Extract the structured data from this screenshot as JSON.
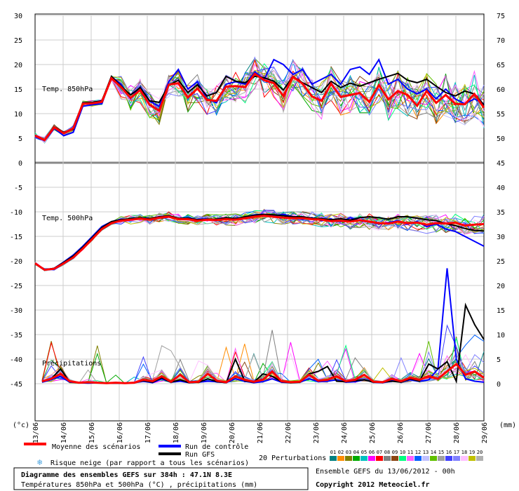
{
  "chart_data": {
    "type": "line",
    "left_axis_label": "(°c)",
    "right_axis_label": "(mm)",
    "left_ticks": [
      "30",
      "25",
      "20",
      "15",
      "10",
      "5",
      "0",
      "-5",
      "-10",
      "-15",
      "-20",
      "-25",
      "-30",
      "-35",
      "-40",
      "-45"
    ],
    "right_ticks": [
      "75",
      "70",
      "65",
      "60",
      "55",
      "50",
      "45",
      "40",
      "35",
      "30",
      "25",
      "20",
      "15",
      "10",
      "5",
      "0"
    ],
    "x_ticks": [
      "13/06",
      "14/06",
      "15/06",
      "16/06",
      "17/06",
      "18/06",
      "19/06",
      "20/06",
      "21/06",
      "22/06",
      "23/06",
      "24/06",
      "25/06",
      "26/06",
      "27/06",
      "28/06",
      "29/06"
    ],
    "panel_labels": {
      "t850": "Temp. 850hPa",
      "t500": "Temp. 500hPa",
      "precip": "Précipitations"
    },
    "series": [
      {
        "name": "Moyenne des scénarios",
        "role": "mean",
        "color": "#ff0000",
        "t850": [
          5.5,
          4.6,
          7.2,
          6.0,
          7.0,
          12.0,
          12.1,
          12.4,
          17.2,
          15.4,
          13.2,
          14.8,
          11.8,
          10.6,
          15.9,
          16.2,
          13.3,
          15.1,
          12.8,
          12.6,
          15.5,
          15.6,
          15.4,
          18.1,
          16.8,
          16.2,
          13.6,
          17.5,
          16.1,
          13.5,
          12.6,
          16.1,
          13.4,
          13.8,
          14.2,
          12.4,
          15.8,
          12.9,
          14.6,
          13.8,
          11.6,
          14.6,
          12.2,
          13.8,
          12.0,
          11.9,
          14.0,
          11.2
        ],
        "t500": [
          -20.5,
          -21.8,
          -21.6,
          -20.5,
          -19.3,
          -17.5,
          -15.5,
          -13.5,
          -12.3,
          -11.8,
          -11.6,
          -11.4,
          -11.6,
          -11.2,
          -11.0,
          -11.5,
          -11.5,
          -11.8,
          -11.6,
          -11.7,
          -11.5,
          -11.6,
          -11.3,
          -11.0,
          -10.8,
          -11.0,
          -11.2,
          -11.3,
          -11.3,
          -11.5,
          -11.6,
          -11.9,
          -11.8,
          -12.0,
          -11.7,
          -12.0,
          -12.3,
          -12.4,
          -12.0,
          -12.3,
          -12.2,
          -12.6,
          -12.3,
          -12.4,
          -12.2,
          -12.8,
          -12.6,
          -12.5
        ],
        "precip": [
          0.5,
          1.0,
          2.0,
          0.5,
          0.2,
          0.3,
          0.2,
          0.1,
          0.2,
          0.1,
          0.2,
          0.8,
          0.5,
          1.5,
          0.4,
          1.8,
          0.3,
          0.4,
          2.0,
          0.6,
          0.3,
          1.5,
          0.8,
          0.4,
          0.8,
          2.5,
          0.5,
          0.3,
          0.4,
          1.8,
          0.6,
          0.8,
          1.5,
          0.5,
          0.8,
          1.8,
          0.4,
          0.3,
          1.0,
          0.5,
          1.2,
          0.8,
          1.5,
          1.0,
          2.5,
          4.0,
          1.8,
          2.5,
          1.2
        ]
      },
      {
        "name": "Run de contrôle",
        "role": "control",
        "color": "#0000ff",
        "t850": [
          5.3,
          4.5,
          7.0,
          5.5,
          6.2,
          11.5,
          11.8,
          12.0,
          17.5,
          16.0,
          13.0,
          15.5,
          12.5,
          11.5,
          16.5,
          19.0,
          15.0,
          16.5,
          13.0,
          12.2,
          16.0,
          16.5,
          16.0,
          18.5,
          17.0,
          21.0,
          20.0,
          18.0,
          19.0,
          16.0,
          17.0,
          18.0,
          16.0,
          19.0,
          19.5,
          18.0,
          21.0,
          16.0,
          17.0,
          15.0,
          14.0,
          15.0,
          13.0,
          15.0,
          13.0,
          12.0,
          13.0,
          12.0
        ],
        "t500": [
          -20.5,
          -21.8,
          -21.5,
          -20.2,
          -18.8,
          -17.0,
          -15.0,
          -13.0,
          -12.0,
          -11.5,
          -11.5,
          -11.2,
          -11.5,
          -11.0,
          -10.8,
          -11.5,
          -11.2,
          -11.6,
          -11.4,
          -11.8,
          -11.2,
          -11.5,
          -11.0,
          -10.6,
          -10.5,
          -10.8,
          -10.5,
          -11.0,
          -11.5,
          -11.2,
          -11.8,
          -11.5,
          -12.0,
          -11.2,
          -11.8,
          -12.0,
          -12.5,
          -12.2,
          -11.8,
          -12.5,
          -12.0,
          -13.0,
          -12.5,
          -13.5,
          -14.0,
          -15.0,
          -16.0,
          -17.0
        ],
        "precip": [
          0.3,
          0.8,
          1.5,
          0.3,
          0.2,
          0.1,
          0.2,
          0.1,
          0.1,
          0.1,
          0.2,
          0.5,
          0.2,
          1.0,
          0.3,
          0.5,
          0.2,
          0.3,
          0.5,
          0.4,
          0.2,
          1.0,
          0.5,
          0.2,
          0.4,
          1.0,
          0.3,
          0.2,
          0.3,
          1.0,
          0.4,
          0.5,
          0.8,
          0.3,
          0.4,
          0.8,
          0.3,
          0.2,
          0.6,
          0.3,
          0.8,
          0.5,
          0.8,
          3.0,
          23.5,
          5.0,
          1.0,
          0.5,
          0.3
        ]
      },
      {
        "name": "Run GFS",
        "role": "gfs",
        "color": "#000000",
        "t850": [
          5.6,
          4.7,
          7.3,
          6.2,
          6.8,
          12.2,
          12.3,
          12.6,
          17.6,
          15.6,
          13.8,
          15.3,
          12.6,
          12.3,
          15.8,
          16.8,
          14.3,
          15.9,
          13.6,
          14.3,
          17.6,
          16.6,
          16.3,
          17.6,
          17.3,
          16.6,
          14.8,
          17.6,
          16.3,
          15.3,
          14.3,
          16.6,
          15.3,
          16.2,
          15.6,
          16.3,
          17.0,
          17.6,
          18.2,
          16.8,
          16.3,
          17.0,
          15.6,
          14.3,
          13.6,
          14.6,
          14.0,
          11.8
        ],
        "t500": [
          -20.5,
          -21.8,
          -21.5,
          -20.3,
          -19.0,
          -17.2,
          -15.2,
          -13.2,
          -12.0,
          -11.6,
          -11.4,
          -11.2,
          -11.4,
          -11.0,
          -10.8,
          -11.3,
          -11.3,
          -11.6,
          -11.5,
          -11.5,
          -11.2,
          -11.4,
          -11.0,
          -10.7,
          -10.5,
          -10.6,
          -10.8,
          -11.0,
          -11.0,
          -11.3,
          -11.4,
          -11.6,
          -11.4,
          -11.7,
          -11.2,
          -11.0,
          -11.2,
          -11.5,
          -11.0,
          -11.0,
          -11.3,
          -11.6,
          -11.8,
          -12.4,
          -12.8,
          -13.4,
          -13.8,
          -13.9
        ],
        "precip": [
          0.4,
          1.0,
          3.0,
          0.4,
          0.2,
          0.2,
          0.2,
          0.1,
          0.1,
          0.1,
          0.2,
          0.6,
          0.3,
          1.2,
          0.3,
          0.8,
          0.2,
          0.3,
          1.0,
          0.4,
          0.2,
          5.0,
          0.6,
          0.3,
          2.0,
          1.5,
          0.4,
          0.2,
          0.3,
          2.0,
          2.5,
          3.5,
          0.5,
          0.4,
          0.6,
          0.8,
          0.3,
          0.3,
          0.5,
          0.3,
          1.0,
          0.5,
          4.0,
          3.0,
          4.5,
          0.5,
          16.0,
          12.0,
          9.0
        ]
      }
    ],
    "legend": {
      "mean_label": "Moyenne des scénarios",
      "control_label": "Run de contrôle",
      "gfs_label": "Run GFS",
      "perturbations_label": "20 Perturbations",
      "snow_label": "Risque neige (par rapport a tous les scénarios)",
      "snow_icon": "snowflake-icon",
      "perturbation_ids": [
        "01",
        "02",
        "03",
        "04",
        "05",
        "06",
        "07",
        "08",
        "09",
        "10",
        "11",
        "12",
        "13",
        "14",
        "15",
        "16",
        "17",
        "18",
        "19",
        "20"
      ],
      "perturbation_colors": [
        "#008080",
        "#ff8c00",
        "#808000",
        "#00aa00",
        "#00c0c0",
        "#ff00ff",
        "#ff0000",
        "#808080",
        "#8b4513",
        "#00ff80",
        "#ff60ff",
        "#0060ff",
        "#c0c0ff",
        "#60c000",
        "#a0a0a0",
        "#4040ff",
        "#8080ff",
        "#ffc0ff",
        "#c0c000",
        "#b0b0b0"
      ]
    },
    "title": "Diagramme des ensembles GEFS sur 384h : 47.1N 8.3E",
    "subtitle": "Températures 850hPa et 500hPa (°C) , précipitations (mm)",
    "run_info": "Ensemble GEFS du 13/06/2012 - 00h",
    "copyright": "Copyright 2012 Meteociel.fr",
    "grid": true
  }
}
